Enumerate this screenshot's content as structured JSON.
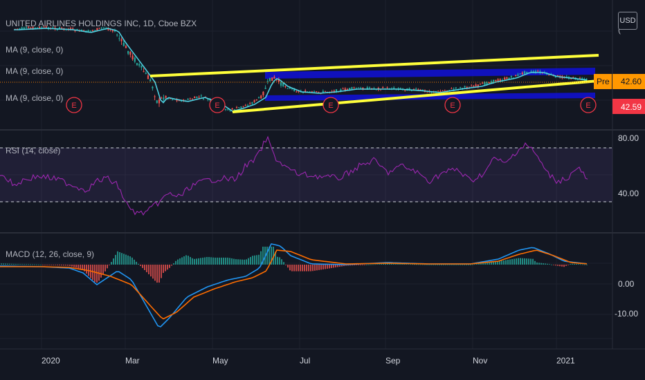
{
  "header": {
    "symbol_title": "UNITED AIRLINES HOLDINGS INC, 1D, Cboe BZX",
    "currency_button": "USD"
  },
  "indicators": {
    "ma_labels": [
      "MA (9, close, 0)",
      "MA (9, close, 0)",
      "MA (9, close, 0)"
    ],
    "rsi_label": "RSI (14, close)",
    "macd_label": "MACD (12, 26, close, 9)"
  },
  "price_badges": {
    "pre_label": "Pre",
    "pre_value": "42.60",
    "last_value": "42.59"
  },
  "earnings_marker_label": "E",
  "colors": {
    "background": "#131722",
    "candle_up": "#26a69a",
    "candle_down": "#ef5350",
    "ma_line": "#2196f3",
    "ma_line_alt": "#4dd0e1",
    "channel_yellow": "#ffff3a",
    "channel_blue": "#1010d8",
    "rsi_line": "#9c27b0",
    "rsi_band": "#7e57c2",
    "macd_line": "#2196f3",
    "signal_line": "#ff6d00",
    "pre_badge": "#ff9800",
    "last_badge": "#f23645",
    "earnings": "#f23645"
  },
  "chart_data": [
    {
      "type": "line",
      "pane": "price",
      "x_ticks": [
        "2020",
        "Mar",
        "May",
        "Jul",
        "Sep",
        "Nov",
        "2021"
      ],
      "series": [],
      "overlays": [
        "yellow trend channel",
        "blue trend channel"
      ],
      "earnings_events": 5,
      "grid": true
    },
    {
      "type": "line",
      "pane": "rsi",
      "y_ticks": [
        "80.00",
        "40.00"
      ],
      "overbought": 70,
      "oversold": 30,
      "series": []
    },
    {
      "type": "line",
      "pane": "macd",
      "y_ticks": [
        "0.00",
        "-10.00"
      ],
      "series": []
    }
  ]
}
